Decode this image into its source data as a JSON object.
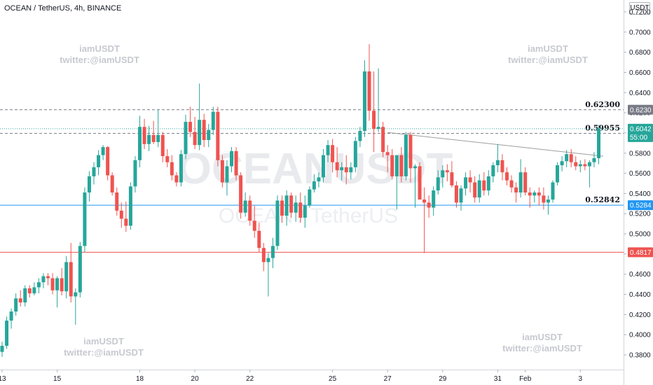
{
  "header": {
    "title": "OCEAN / TetherUS, 4h, BINANCE",
    "currency": "USDT"
  },
  "watermark": {
    "big_text": "OCEANUSDT",
    "small_text": "OCEAN / TetherUS",
    "tag_lines": [
      "iamUSDT",
      "twitter:@iamUSDT"
    ]
  },
  "colors": {
    "up": "#26a69a",
    "down": "#ef5350",
    "support_line": "#2196f3",
    "low_line": "#ef5350",
    "dashed_line": "#787b86",
    "trend_line": "#9e9e9e"
  },
  "chart_data": {
    "type": "candlestick",
    "ylim": [
      0.37,
      0.73
    ],
    "y_ticks": [
      "0.7200",
      "0.7000",
      "0.6800",
      "0.6600",
      "0.6400",
      "0.6200",
      "0.6000",
      "0.5800",
      "0.5600",
      "0.5400",
      "0.5200",
      "0.5000",
      "0.4800",
      "0.4600",
      "0.4400",
      "0.4200",
      "0.4000",
      "0.3800"
    ],
    "x_ticks": [
      {
        "label": "13",
        "i": 0
      },
      {
        "label": "15",
        "i": 12
      },
      {
        "label": "18",
        "i": 30
      },
      {
        "label": "20",
        "i": 42
      },
      {
        "label": "22",
        "i": 54
      },
      {
        "label": "25",
        "i": 72
      },
      {
        "label": "27",
        "i": 84
      },
      {
        "label": "29",
        "i": 96
      },
      {
        "label": "31",
        "i": 108
      },
      {
        "label": "Feb",
        "i": 114
      },
      {
        "label": "3",
        "i": 126
      }
    ],
    "candles": [
      [
        0.383,
        0.393,
        0.378,
        0.389
      ],
      [
        0.389,
        0.418,
        0.386,
        0.414
      ],
      [
        0.414,
        0.426,
        0.406,
        0.423
      ],
      [
        0.423,
        0.441,
        0.419,
        0.436
      ],
      [
        0.436,
        0.444,
        0.428,
        0.432
      ],
      [
        0.432,
        0.449,
        0.428,
        0.446
      ],
      [
        0.446,
        0.449,
        0.437,
        0.441
      ],
      [
        0.441,
        0.452,
        0.439,
        0.447
      ],
      [
        0.447,
        0.456,
        0.441,
        0.452
      ],
      [
        0.452,
        0.461,
        0.446,
        0.458
      ],
      [
        0.458,
        0.461,
        0.449,
        0.456
      ],
      [
        0.456,
        0.461,
        0.44,
        0.444
      ],
      [
        0.444,
        0.458,
        0.427,
        0.456
      ],
      [
        0.456,
        0.466,
        0.439,
        0.443
      ],
      [
        0.443,
        0.478,
        0.436,
        0.472
      ],
      [
        0.472,
        0.491,
        0.432,
        0.438
      ],
      [
        0.438,
        0.446,
        0.41,
        0.442
      ],
      [
        0.442,
        0.492,
        0.437,
        0.488
      ],
      [
        0.488,
        0.546,
        0.482,
        0.541
      ],
      [
        0.541,
        0.562,
        0.532,
        0.557
      ],
      [
        0.557,
        0.571,
        0.549,
        0.566
      ],
      [
        0.566,
        0.583,
        0.558,
        0.578
      ],
      [
        0.578,
        0.588,
        0.573,
        0.586
      ],
      [
        0.586,
        0.587,
        0.553,
        0.558
      ],
      [
        0.558,
        0.561,
        0.538,
        0.541
      ],
      [
        0.541,
        0.546,
        0.518,
        0.523
      ],
      [
        0.523,
        0.531,
        0.506,
        0.515
      ],
      [
        0.515,
        0.532,
        0.502,
        0.508
      ],
      [
        0.508,
        0.551,
        0.504,
        0.547
      ],
      [
        0.547,
        0.577,
        0.541,
        0.573
      ],
      [
        0.573,
        0.617,
        0.566,
        0.606
      ],
      [
        0.606,
        0.614,
        0.584,
        0.589
      ],
      [
        0.589,
        0.607,
        0.582,
        0.598
      ],
      [
        0.598,
        0.612,
        0.589,
        0.591
      ],
      [
        0.591,
        0.623,
        0.586,
        0.598
      ],
      [
        0.598,
        0.601,
        0.571,
        0.577
      ],
      [
        0.577,
        0.584,
        0.566,
        0.571
      ],
      [
        0.571,
        0.578,
        0.553,
        0.558
      ],
      [
        0.558,
        0.561,
        0.547,
        0.551
      ],
      [
        0.551,
        0.583,
        0.547,
        0.579
      ],
      [
        0.579,
        0.618,
        0.574,
        0.611
      ],
      [
        0.611,
        0.626,
        0.596,
        0.601
      ],
      [
        0.601,
        0.616,
        0.584,
        0.588
      ],
      [
        0.588,
        0.649,
        0.583,
        0.613
      ],
      [
        0.613,
        0.619,
        0.586,
        0.593
      ],
      [
        0.593,
        0.609,
        0.586,
        0.603
      ],
      [
        0.603,
        0.626,
        0.598,
        0.621
      ],
      [
        0.621,
        0.626,
        0.567,
        0.573
      ],
      [
        0.573,
        0.578,
        0.546,
        0.551
      ],
      [
        0.551,
        0.573,
        0.538,
        0.567
      ],
      [
        0.567,
        0.586,
        0.561,
        0.582
      ],
      [
        0.582,
        0.586,
        0.553,
        0.558
      ],
      [
        0.558,
        0.561,
        0.515,
        0.521
      ],
      [
        0.521,
        0.541,
        0.517,
        0.533
      ],
      [
        0.533,
        0.538,
        0.508,
        0.513
      ],
      [
        0.513,
        0.528,
        0.496,
        0.503
      ],
      [
        0.503,
        0.511,
        0.482,
        0.486
      ],
      [
        0.486,
        0.491,
        0.463,
        0.472
      ],
      [
        0.472,
        0.481,
        0.438,
        0.476
      ],
      [
        0.476,
        0.496,
        0.466,
        0.488
      ],
      [
        0.488,
        0.538,
        0.484,
        0.533
      ],
      [
        0.533,
        0.538,
        0.511,
        0.518
      ],
      [
        0.518,
        0.543,
        0.508,
        0.538
      ],
      [
        0.538,
        0.541,
        0.516,
        0.521
      ],
      [
        0.521,
        0.538,
        0.512,
        0.531
      ],
      [
        0.531,
        0.541,
        0.511,
        0.516
      ],
      [
        0.516,
        0.538,
        0.506,
        0.528
      ],
      [
        0.528,
        0.547,
        0.526,
        0.544
      ],
      [
        0.544,
        0.559,
        0.541,
        0.552
      ],
      [
        0.552,
        0.561,
        0.546,
        0.556
      ],
      [
        0.556,
        0.584,
        0.551,
        0.578
      ],
      [
        0.578,
        0.593,
        0.571,
        0.588
      ],
      [
        0.588,
        0.594,
        0.561,
        0.571
      ],
      [
        0.571,
        0.586,
        0.556,
        0.563
      ],
      [
        0.563,
        0.571,
        0.553,
        0.566
      ],
      [
        0.566,
        0.578,
        0.549,
        0.561
      ],
      [
        0.561,
        0.571,
        0.554,
        0.566
      ],
      [
        0.566,
        0.596,
        0.561,
        0.592
      ],
      [
        0.592,
        0.606,
        0.586,
        0.602
      ],
      [
        0.602,
        0.672,
        0.596,
        0.661
      ],
      [
        0.661,
        0.688,
        0.612,
        0.622
      ],
      [
        0.622,
        0.661,
        0.581,
        0.604
      ],
      [
        0.604,
        0.664,
        0.601,
        0.606
      ],
      [
        0.606,
        0.611,
        0.576,
        0.581
      ],
      [
        0.581,
        0.588,
        0.561,
        0.578
      ],
      [
        0.578,
        0.584,
        0.554,
        0.557
      ],
      [
        0.557,
        0.576,
        0.524,
        0.578
      ],
      [
        0.578,
        0.586,
        0.551,
        0.557
      ],
      [
        0.557,
        0.601,
        0.553,
        0.598
      ],
      [
        0.598,
        0.601,
        0.551,
        0.565
      ],
      [
        0.565,
        0.569,
        0.526,
        0.567
      ],
      [
        0.567,
        0.571,
        0.536,
        0.534
      ],
      [
        0.534,
        0.546,
        0.481,
        0.531
      ],
      [
        0.531,
        0.538,
        0.516,
        0.526
      ],
      [
        0.526,
        0.547,
        0.518,
        0.543
      ],
      [
        0.543,
        0.563,
        0.539,
        0.556
      ],
      [
        0.556,
        0.568,
        0.546,
        0.563
      ],
      [
        0.563,
        0.569,
        0.552,
        0.561
      ],
      [
        0.561,
        0.572,
        0.546,
        0.548
      ],
      [
        0.548,
        0.552,
        0.526,
        0.531
      ],
      [
        0.531,
        0.548,
        0.523,
        0.545
      ],
      [
        0.545,
        0.561,
        0.538,
        0.556
      ],
      [
        0.556,
        0.563,
        0.541,
        0.551
      ],
      [
        0.551,
        0.557,
        0.531,
        0.536
      ],
      [
        0.536,
        0.559,
        0.531,
        0.553
      ],
      [
        0.553,
        0.561,
        0.538,
        0.543
      ],
      [
        0.543,
        0.563,
        0.538,
        0.557
      ],
      [
        0.557,
        0.571,
        0.551,
        0.568
      ],
      [
        0.568,
        0.589,
        0.561,
        0.573
      ],
      [
        0.573,
        0.579,
        0.553,
        0.561
      ],
      [
        0.561,
        0.566,
        0.548,
        0.553
      ],
      [
        0.553,
        0.558,
        0.541,
        0.546
      ],
      [
        0.546,
        0.551,
        0.531,
        0.541
      ],
      [
        0.541,
        0.574,
        0.536,
        0.561
      ],
      [
        0.561,
        0.566,
        0.538,
        0.541
      ],
      [
        0.541,
        0.546,
        0.526,
        0.538
      ],
      [
        0.538,
        0.543,
        0.531,
        0.541
      ],
      [
        0.541,
        0.546,
        0.528,
        0.538
      ],
      [
        0.538,
        0.546,
        0.524,
        0.531
      ],
      [
        0.531,
        0.538,
        0.519,
        0.534
      ],
      [
        0.534,
        0.553,
        0.531,
        0.551
      ],
      [
        0.551,
        0.571,
        0.548,
        0.568
      ],
      [
        0.568,
        0.577,
        0.562,
        0.572
      ],
      [
        0.572,
        0.583,
        0.566,
        0.579
      ],
      [
        0.579,
        0.584,
        0.566,
        0.571
      ],
      [
        0.571,
        0.577,
        0.563,
        0.567
      ],
      [
        0.567,
        0.573,
        0.561,
        0.569
      ],
      [
        0.569,
        0.574,
        0.563,
        0.567
      ],
      [
        0.567,
        0.573,
        0.546,
        0.571
      ],
      [
        0.571,
        0.581,
        0.566,
        0.575
      ],
      [
        0.575,
        0.608,
        0.569,
        0.6042
      ]
    ],
    "horizontal_lines": [
      {
        "price": 0.623,
        "label": "0.62300",
        "axis_label": "0.6230",
        "style": "dashed",
        "color": "#787b86"
      },
      {
        "price": 0.59955,
        "label": "0.59955",
        "axis_label": "0.5995",
        "style": "dashed",
        "color": "#787b86"
      },
      {
        "price": 0.52842,
        "label": "0.52842",
        "axis_label": "0.5284",
        "style": "solid",
        "color": "#2196f3"
      },
      {
        "price": 0.4817,
        "label": "",
        "axis_label": "0.4817",
        "style": "solid",
        "color": "#ef5350"
      }
    ],
    "trend_line": {
      "from": {
        "i": 84,
        "price": 0.6005
      },
      "to": {
        "i": 131,
        "price": 0.577
      }
    },
    "last_price": {
      "value": "0.6042",
      "countdown": "55:00"
    }
  }
}
